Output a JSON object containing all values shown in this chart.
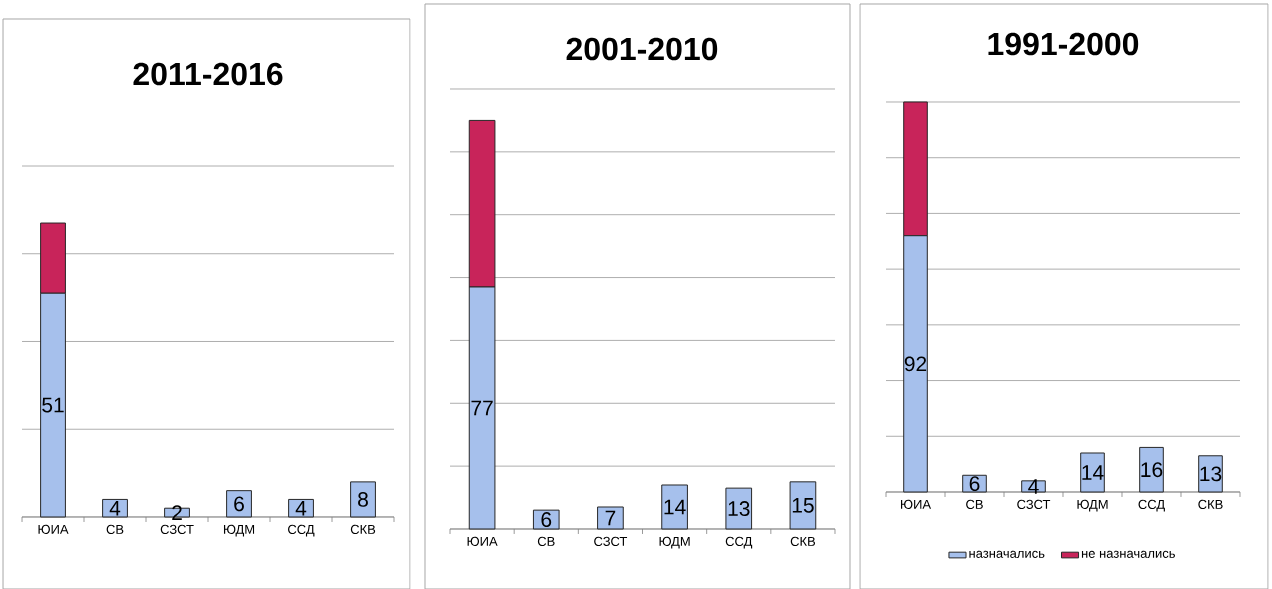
{
  "chart_data": [
    {
      "type": "bar",
      "title": "2011-2016",
      "categories": [
        "ЮИА",
        "СВ",
        "СЗСТ",
        "ЮДМ",
        "ССД",
        "СКВ"
      ],
      "stacked": true,
      "ylim": [
        0,
        80
      ],
      "yticks": [
        {
          "value": 0,
          "label": null
        },
        {
          "value": 20,
          "label": null
        },
        {
          "value": 40,
          "label": null
        },
        {
          "value": 60,
          "label": null
        },
        {
          "value": 80,
          "label": null
        }
      ],
      "grid": "y",
      "tick_labels": "x",
      "series": [
        {
          "color": "#a6c0ec",
          "values": [
            51,
            4,
            2,
            6,
            4,
            8
          ],
          "value_labels": [
            "51",
            "4",
            "2",
            "6",
            "4",
            "8"
          ]
        },
        {
          "color": "#c8245a",
          "values": [
            16,
            null,
            null,
            null,
            null,
            null
          ]
        }
      ]
    },
    {
      "type": "bar",
      "title": "2001-2010",
      "categories": [
        "ЮИА",
        "СВ",
        "СЗСТ",
        "ЮДМ",
        "ССД",
        "СКВ"
      ],
      "stacked": true,
      "ylim": [
        0,
        140
      ],
      "yticks": [
        {
          "value": 0,
          "label": null
        },
        {
          "value": 20,
          "label": null
        },
        {
          "value": 40,
          "label": null
        },
        {
          "value": 60,
          "label": null
        },
        {
          "value": 80,
          "label": null
        },
        {
          "value": 100,
          "label": null
        },
        {
          "value": 120,
          "label": null
        },
        {
          "value": 140,
          "label": null
        }
      ],
      "grid": "y",
      "tick_labels": "x",
      "series": [
        {
          "color": "#a6c0ec",
          "values": [
            77,
            6,
            7,
            14,
            13,
            15
          ],
          "value_labels": [
            "77",
            "6",
            "7",
            "14",
            "13",
            "15"
          ]
        },
        {
          "color": "#c8245a",
          "values": [
            53,
            null,
            null,
            null,
            null,
            null
          ]
        }
      ]
    },
    {
      "type": "bar",
      "title": "1991-2000",
      "categories": [
        "ЮИА",
        "СВ",
        "СЗСТ",
        "ЮДМ",
        "ССД",
        "СКВ"
      ],
      "stacked": true,
      "ylim": [
        0,
        140
      ],
      "yticks": [
        {
          "value": 0,
          "label": null
        },
        {
          "value": 20,
          "label": null
        },
        {
          "value": 40,
          "label": null
        },
        {
          "value": 60,
          "label": null
        },
        {
          "value": 80,
          "label": null
        },
        {
          "value": 100,
          "label": null
        },
        {
          "value": 120,
          "label": null
        },
        {
          "value": 140,
          "label": null
        }
      ],
      "grid": "y",
      "tick_labels": "x",
      "legend": "bottom",
      "series": [
        {
          "name": "назначались",
          "color": "#a6c0ec",
          "values": [
            92,
            6,
            4,
            14,
            16,
            13
          ],
          "value_labels": [
            "92",
            "6",
            "4",
            "14",
            "16",
            "13"
          ]
        },
        {
          "name": "не назначались",
          "color": "#c8245a",
          "values": [
            48,
            null,
            null,
            null,
            null,
            null
          ]
        }
      ]
    }
  ]
}
